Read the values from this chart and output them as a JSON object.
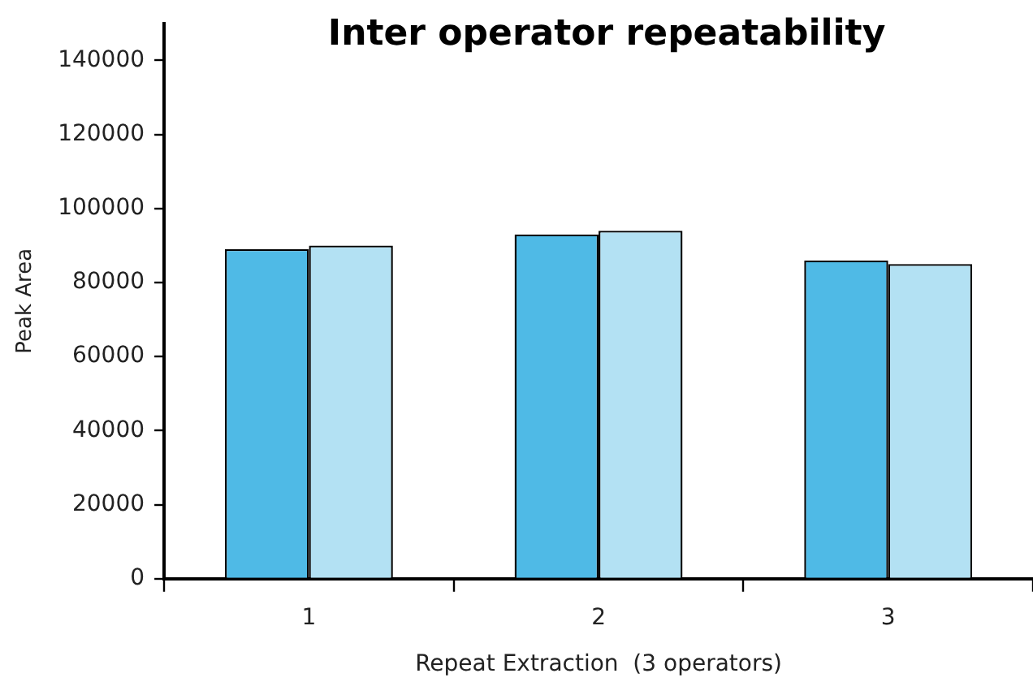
{
  "chart_data": {
    "type": "bar",
    "title": "Inter operator repeatability",
    "xlabel": "Repeat Extraction  (3 operators)",
    "ylabel": "Peak Area",
    "categories": [
      "1",
      "2",
      "3"
    ],
    "series": [
      {
        "color": "#4fbae6",
        "values": [
          89000,
          93000,
          86000
        ]
      },
      {
        "color": "#b3e1f3",
        "values": [
          90000,
          94000,
          85000
        ]
      }
    ],
    "ylim": [
      0,
      150000
    ],
    "yticks": [
      0,
      20000,
      40000,
      60000,
      80000,
      100000,
      120000,
      140000
    ],
    "grid": false,
    "legend": false
  }
}
